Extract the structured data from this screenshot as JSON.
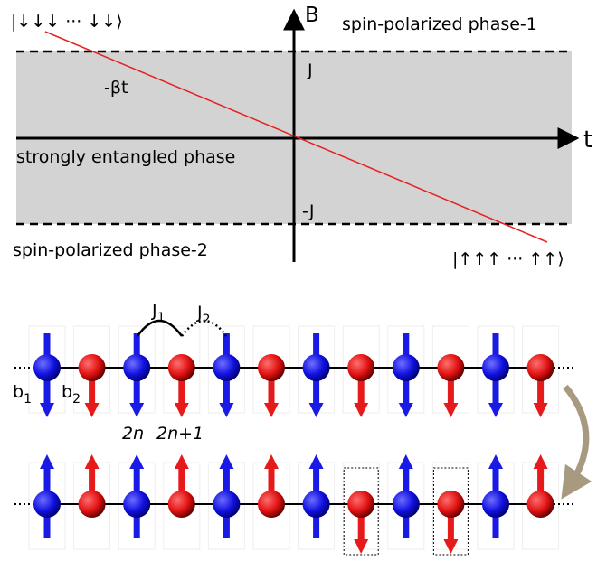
{
  "phase_diagram": {
    "state_down": "|↓↓↓ ··· ↓↓⟩",
    "state_up": "|↑↑↑ ··· ↑↑⟩",
    "axis_b": "B",
    "axis_t": "t",
    "phase_1": "spin-polarized phase-1",
    "phase_2": "spin-polarized phase-2",
    "entangled": "strongly entangled phase",
    "j_upper": "J",
    "j_lower": "-J",
    "slope": "-βt"
  },
  "chain": {
    "j1": {
      "base": "J",
      "sub": "1"
    },
    "j2": {
      "base": "J",
      "sub": "2"
    },
    "b1": {
      "base": "b",
      "sub": "1"
    },
    "b2": {
      "base": "b",
      "sub": "2"
    },
    "site_even": "2n",
    "site_odd": "2n+1"
  }
}
